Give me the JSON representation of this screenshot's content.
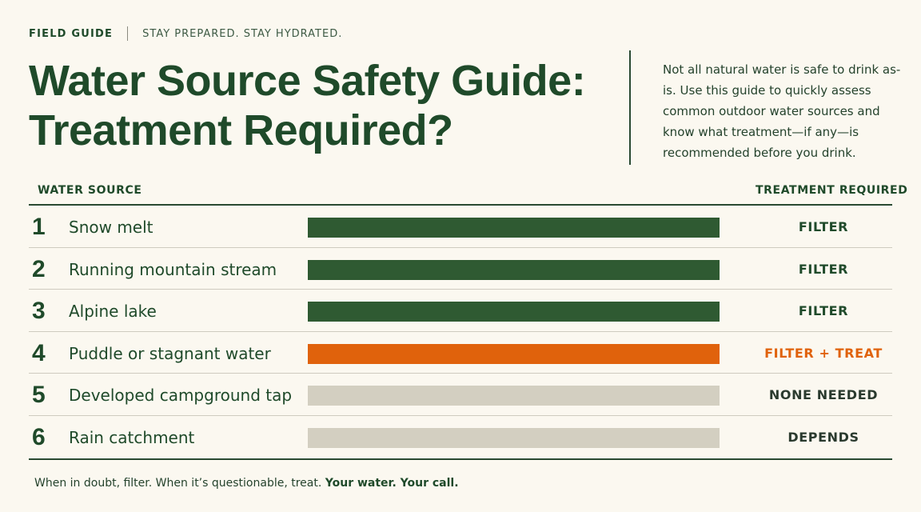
{
  "header": {
    "tag": "FIELD GUIDE",
    "motto": "STAY PREPARED. STAY HYDRATED.",
    "title_line1": "Water Source Safety Guide:",
    "title_line2": "Treatment Required?",
    "intro": "Not all natural water is safe to drink as-is. Use this guide to quickly assess common outdoor water sources and know what treatment—if any—is recommended before you drink."
  },
  "table": {
    "col_source": "WATER SOURCE",
    "col_treatment": "TREATMENT REQUIRED",
    "rows": [
      {
        "num": "1",
        "source": "Snow melt",
        "treatment": "FILTER",
        "color": "#2f5a32",
        "text_color": "#1f4a2a"
      },
      {
        "num": "2",
        "source": "Running mountain stream",
        "treatment": "FILTER",
        "color": "#2f5a32",
        "text_color": "#1f4a2a"
      },
      {
        "num": "3",
        "source": "Alpine lake",
        "treatment": "FILTER",
        "color": "#2f5a32",
        "text_color": "#1f4a2a"
      },
      {
        "num": "4",
        "source": "Puddle or stagnant water",
        "treatment": "FILTER + TREAT",
        "color": "#e0620c",
        "text_color": "#e0620c"
      },
      {
        "num": "5",
        "source": "Developed campground tap",
        "treatment": "NONE NEEDED",
        "color": "#d3cfc1",
        "text_color": "#2a3a2e"
      },
      {
        "num": "6",
        "source": "Rain catchment",
        "treatment": "DEPENDS",
        "color": "#d3cfc1",
        "text_color": "#2a3a2e"
      }
    ]
  },
  "footer": {
    "text": "When in doubt, filter. When it’s questionable, treat.",
    "strong": "Your water. Your call."
  }
}
